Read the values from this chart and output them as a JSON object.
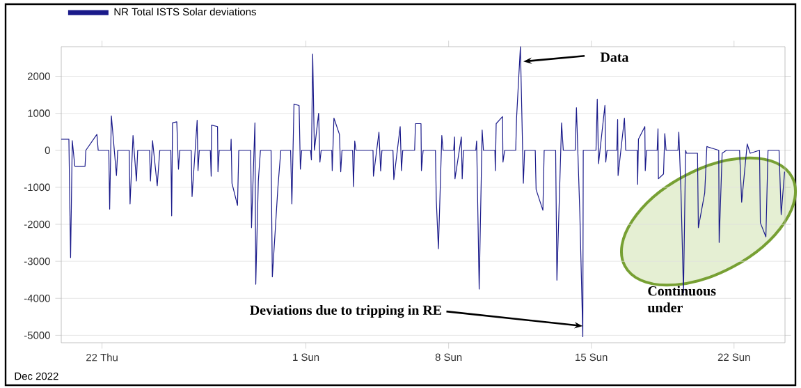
{
  "chart_data": {
    "type": "line",
    "legend": "top left",
    "grid": "y",
    "xlim": [
      "2022-12-20T00:00",
      "2023-01-24T12:00"
    ],
    "ylim": [
      -5200,
      2800
    ],
    "xticks": [
      {
        "value": "2022-12-22",
        "label": "22 Thu"
      },
      {
        "value": "2023-01-01",
        "label": "1 Sun"
      },
      {
        "value": "2023-01-08",
        "label": "8 Sun"
      },
      {
        "value": "2023-01-15",
        "label": "15 Sun"
      },
      {
        "value": "2023-01-22",
        "label": "22 Sun"
      }
    ],
    "yticks": [
      -5000,
      -4000,
      -3000,
      -2000,
      -1000,
      0,
      1000,
      2000
    ],
    "x": [
      "2022-12-20T00:00",
      "2022-12-20T09:00",
      "2022-12-20T11:00",
      "2022-12-20T13:00",
      "2022-12-20T16:00",
      "2022-12-21T04:00",
      "2022-12-21T05:00",
      "2022-12-21T18:00",
      "2022-12-21T19:30",
      "2022-12-22T08:00",
      "2022-12-22T09:00",
      "2022-12-22T11:00",
      "2022-12-22T17:00",
      "2022-12-22T18:30",
      "2022-12-23T08:00",
      "2022-12-23T09:00",
      "2022-12-23T12:30",
      "2022-12-23T16:30",
      "2022-12-23T18:00",
      "2022-12-24T08:00",
      "2022-12-24T09:00",
      "2022-12-24T11:30",
      "2022-12-24T17:00",
      "2022-12-24T20:00",
      "2022-12-25T09:00",
      "2022-12-25T10:00",
      "2022-12-25T11:00",
      "2022-12-25T16:00",
      "2022-12-25T18:00",
      "2022-12-25T19:30",
      "2022-12-26T09:00",
      "2022-12-26T10:00",
      "2022-12-26T16:00",
      "2022-12-26T17:00",
      "2022-12-26T18:30",
      "2022-12-27T07:30",
      "2022-12-27T08:30",
      "2022-12-27T09:00",
      "2022-12-27T16:00",
      "2022-12-27T16:30",
      "2022-12-27T18:00",
      "2022-12-28T07:30",
      "2022-12-28T08:00",
      "2022-12-28T09:00",
      "2022-12-28T15:30",
      "2022-12-28T17:00",
      "2022-12-29T07:00",
      "2022-12-29T08:00",
      "2022-12-29T12:00",
      "2022-12-29T13:00",
      "2022-12-29T16:00",
      "2022-12-29T18:30",
      "2022-12-30T07:00",
      "2022-12-30T08:30",
      "2022-12-30T15:00",
      "2022-12-30T18:30",
      "2022-12-31T06:00",
      "2022-12-31T07:30",
      "2022-12-31T10:00",
      "2022-12-31T16:00",
      "2022-12-31T17:30",
      "2022-12-31T19:00",
      "2023-01-01T05:30",
      "2023-01-01T06:30",
      "2023-01-01T08:00",
      "2023-01-01T10:00",
      "2023-01-01T15:00",
      "2023-01-01T16:30",
      "2023-01-01T18:00",
      "2023-01-02T06:30",
      "2023-01-02T07:00",
      "2023-01-02T09:00",
      "2023-01-02T15:30",
      "2023-01-02T17:00",
      "2023-01-02T18:30",
      "2023-01-03T07:00",
      "2023-01-03T08:00",
      "2023-01-03T09:30",
      "2023-01-03T11:00",
      "2023-01-04T07:00",
      "2023-01-04T07:30",
      "2023-01-04T14:00",
      "2023-01-04T16:00",
      "2023-01-04T17:30",
      "2023-01-05T06:30",
      "2023-01-05T07:30",
      "2023-01-05T15:00",
      "2023-01-05T16:30",
      "2023-01-05T18:00",
      "2023-01-06T08:00",
      "2023-01-06T09:00",
      "2023-01-06T15:30",
      "2023-01-06T16:00",
      "2023-01-06T18:00",
      "2023-01-07T08:30",
      "2023-01-07T09:30",
      "2023-01-07T12:00",
      "2023-01-07T16:00",
      "2023-01-07T17:30",
      "2023-01-08T06:00",
      "2023-01-08T07:00",
      "2023-01-08T07:30",
      "2023-01-08T15:00",
      "2023-01-08T16:00",
      "2023-01-08T17:30",
      "2023-01-09T08:00",
      "2023-01-09T09:00",
      "2023-01-09T12:00",
      "2023-01-09T15:30",
      "2023-01-09T17:00",
      "2023-01-10T06:30",
      "2023-01-10T07:00",
      "2023-01-10T08:00",
      "2023-01-10T15:30",
      "2023-01-10T16:00",
      "2023-01-10T18:00",
      "2023-01-11T07:00",
      "2023-01-11T08:00",
      "2023-01-11T12:30",
      "2023-01-11T16:00",
      "2023-01-11T17:30",
      "2023-01-12T06:00",
      "2023-01-12T07:00",
      "2023-01-12T15:00",
      "2023-01-12T16:30",
      "2023-01-13T06:00",
      "2023-01-13T07:30",
      "2023-01-13T13:00",
      "2023-01-13T15:00",
      "2023-01-14T05:00",
      "2023-01-14T06:30",
      "2023-01-14T10:30",
      "2023-01-14T14:00",
      "2023-01-14T14:30",
      "2023-01-15T05:30",
      "2023-01-15T07:00",
      "2023-01-15T08:30",
      "2023-01-15T16:00",
      "2023-01-15T17:00",
      "2023-01-15T18:30",
      "2023-01-16T06:00",
      "2023-01-16T07:00",
      "2023-01-16T07:30",
      "2023-01-16T15:00",
      "2023-01-16T16:30",
      "2023-01-17T06:00",
      "2023-01-17T06:30",
      "2023-01-17T07:30",
      "2023-01-17T15:00",
      "2023-01-17T15:30",
      "2023-01-17T17:00",
      "2023-01-18T05:30",
      "2023-01-18T06:30",
      "2023-01-18T07:00",
      "2023-01-18T13:00",
      "2023-01-18T14:30",
      "2023-01-18T16:00",
      "2023-01-19T06:00",
      "2023-01-19T07:00",
      "2023-01-19T09:30",
      "2023-01-19T12:30",
      "2023-01-19T15:00",
      "2023-01-19T16:00",
      "2023-01-20T05:00",
      "2023-01-20T06:00",
      "2023-01-20T13:30",
      "2023-01-20T16:00",
      "2023-01-21T06:00",
      "2023-01-21T06:30",
      "2023-01-21T10:00",
      "2023-01-21T15:00",
      "2023-01-22T06:30",
      "2023-01-22T09:00",
      "2023-01-22T15:30",
      "2023-01-22T19:00",
      "2023-01-23T06:00",
      "2023-01-23T07:00",
      "2023-01-23T13:30",
      "2023-01-23T16:00",
      "2023-01-24T05:00",
      "2023-01-24T07:30",
      "2023-01-24T11:30"
    ],
    "series": [
      {
        "name": "NR Total ISTS Solar deviations",
        "color": "#1a1a8a",
        "values": [
          300,
          300,
          -2900,
          260,
          -430,
          -430,
          0,
          430,
          0,
          0,
          -1590,
          930,
          -680,
          0,
          0,
          -1450,
          400,
          -830,
          0,
          0,
          -830,
          260,
          -960,
          0,
          0,
          -1770,
          740,
          770,
          -510,
          0,
          0,
          -1250,
          810,
          -550,
          0,
          0,
          -700,
          680,
          640,
          -580,
          0,
          0,
          300,
          -890,
          -1490,
          0,
          0,
          -2090,
          740,
          -3620,
          -830,
          0,
          0,
          -3420,
          -1020,
          0,
          0,
          -1450,
          1250,
          1210,
          -510,
          0,
          0,
          -260,
          2600,
          0,
          1000,
          -320,
          0,
          0,
          -550,
          870,
          430,
          -580,
          0,
          0,
          -980,
          250,
          0,
          0,
          -700,
          490,
          -560,
          0,
          0,
          -790,
          640,
          -550,
          0,
          0,
          720,
          720,
          -550,
          0,
          0,
          -1340,
          -2660,
          400,
          0,
          0,
          360,
          -770,
          360,
          -770,
          0,
          0,
          250,
          -3750,
          550,
          0,
          0,
          -550,
          720,
          910,
          -320,
          0,
          0,
          870,
          2800,
          -890,
          0,
          0,
          -1060,
          -1620,
          0,
          0,
          -3510,
          740,
          0,
          0,
          1150,
          -1720,
          -5040,
          0,
          0,
          1380,
          -360,
          1210,
          -320,
          0,
          0,
          830,
          -680,
          870,
          0,
          0,
          -920,
          300,
          640,
          -550,
          0,
          0,
          580,
          -770,
          -640,
          450,
          0,
          0,
          490,
          -1080,
          -3850,
          0,
          -80,
          -80,
          -2090,
          -1150,
          100,
          0,
          -2490,
          -80,
          0,
          0,
          -1400,
          170,
          -80,
          0,
          -1960,
          -2340,
          0,
          0,
          -1740,
          -580
        ]
      }
    ],
    "annotations": [
      {
        "text": "Data",
        "x": "2023-01-11T16:00",
        "y": 2400
      },
      {
        "text": "Deviations due to tripping in RE",
        "x": "2023-01-14T14:00",
        "y": -4750
      },
      "Continuous under",
      "Dec 2022"
    ]
  }
}
